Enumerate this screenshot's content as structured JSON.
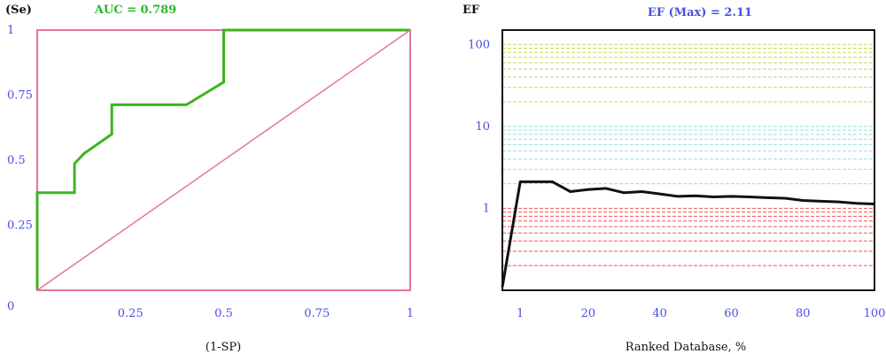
{
  "chart_data": [
    {
      "type": "line",
      "title": "AUC = 0.789",
      "ylabel": "(Se)",
      "xlabel": "(1-SP)",
      "xlim": [
        0,
        1
      ],
      "ylim": [
        0,
        1
      ],
      "x_ticks": [
        0.25,
        0.5,
        0.75,
        1
      ],
      "x_tick_labels": [
        "0.25",
        "0.5",
        "0.75",
        "1"
      ],
      "y_ticks": [
        0,
        0.25,
        0.5,
        0.75,
        1
      ],
      "y_tick_labels": [
        "0",
        "0.25",
        "0.5",
        "0.75",
        "1"
      ],
      "series": [
        {
          "color": "#3cb521",
          "points": [
            [
              0,
              0
            ],
            [
              0,
              0.375
            ],
            [
              0.1,
              0.375
            ],
            [
              0.1,
              0.487
            ],
            [
              0.125,
              0.525
            ],
            [
              0.2,
              0.6
            ],
            [
              0.2,
              0.713
            ],
            [
              0.4,
              0.713
            ],
            [
              0.5,
              0.8
            ],
            [
              0.5,
              1
            ],
            [
              1,
              1
            ]
          ]
        },
        {
          "color": "#e8739a",
          "points": [
            [
              0,
              0
            ],
            [
              1,
              1
            ]
          ]
        }
      ],
      "frame_color": "#e8739a"
    },
    {
      "type": "line",
      "title": "EF (Max) = 2.11",
      "ylabel": "EF",
      "xlabel": "Ranked Database, %",
      "x_tick_labels": [
        "1",
        "20",
        "40",
        "60",
        "80",
        "100"
      ],
      "x_ticks": [
        1,
        20,
        40,
        60,
        80,
        100
      ],
      "xlim": [
        -4,
        100
      ],
      "y_scale": "log",
      "ylim": [
        0.1,
        150
      ],
      "y_ticks": [
        1,
        10,
        100
      ],
      "y_tick_labels": [
        "1",
        "10",
        "100"
      ],
      "series": [
        {
          "color": "#111111",
          "points": [
            [
              -4,
              0.11
            ],
            [
              1,
              2.11
            ],
            [
              10,
              2.11
            ],
            [
              15,
              1.6
            ],
            [
              20,
              1.7
            ],
            [
              25,
              1.75
            ],
            [
              30,
              1.55
            ],
            [
              35,
              1.6
            ],
            [
              40,
              1.5
            ],
            [
              45,
              1.4
            ],
            [
              50,
              1.42
            ],
            [
              55,
              1.38
            ],
            [
              60,
              1.4
            ],
            [
              65,
              1.38
            ],
            [
              70,
              1.35
            ],
            [
              75,
              1.33
            ],
            [
              80,
              1.25
            ],
            [
              85,
              1.22
            ],
            [
              90,
              1.2
            ],
            [
              95,
              1.15
            ],
            [
              100,
              1.13
            ]
          ]
        }
      ],
      "reference_bands": [
        {
          "color": "#ee5555",
          "levels": [
            0.2,
            0.3,
            0.4,
            0.5,
            0.6,
            0.7,
            0.8,
            0.9,
            1.0
          ]
        },
        {
          "color": "#99dde0",
          "levels": [
            2,
            3,
            4,
            5,
            6,
            7,
            8,
            9,
            10
          ]
        },
        {
          "color": "#c6d85a",
          "levels": [
            20,
            30,
            40,
            50,
            60,
            70,
            80,
            90,
            100
          ]
        }
      ],
      "frame_color": "#111111"
    }
  ]
}
